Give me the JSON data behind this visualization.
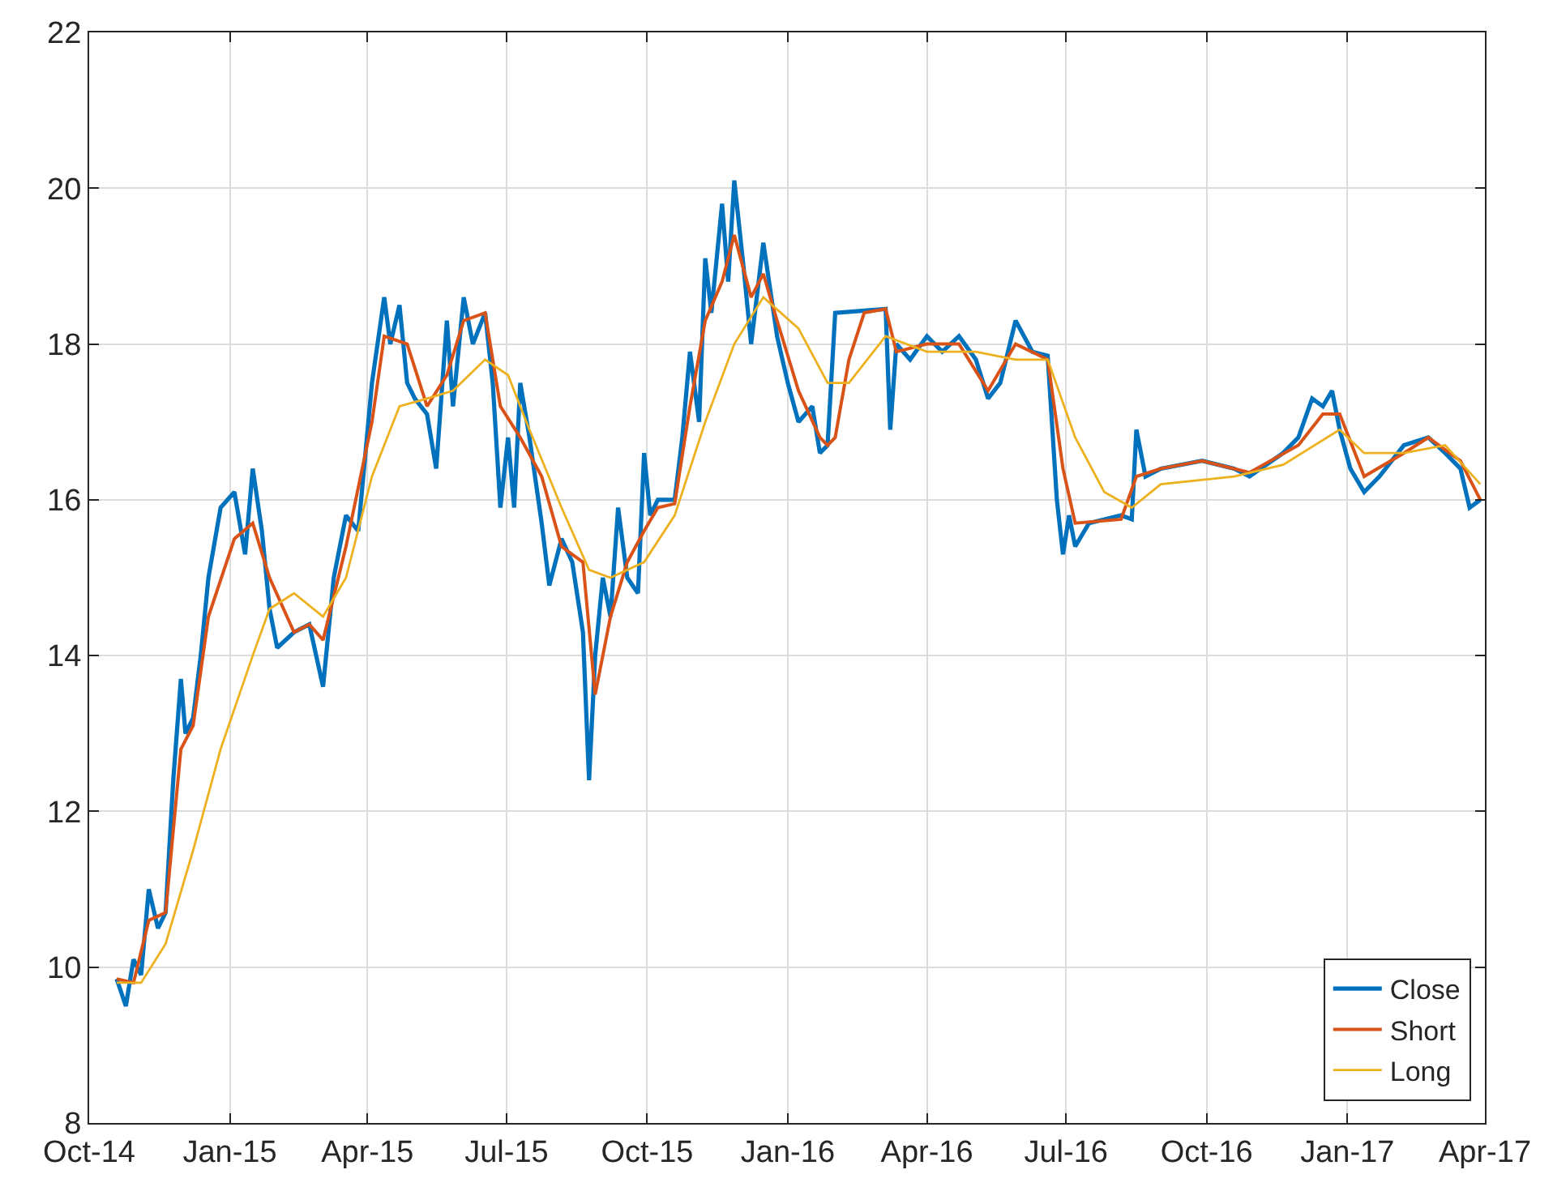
{
  "chart_data": {
    "type": "line",
    "xlim": [
      "2014-10-01",
      "2017-04-01"
    ],
    "xticks": [
      {
        "value": "2014-10-01",
        "label": "Oct-14"
      },
      {
        "value": "2015-01-01",
        "label": "Jan-15"
      },
      {
        "value": "2015-04-01",
        "label": "Apr-15"
      },
      {
        "value": "2015-07-01",
        "label": "Jul-15"
      },
      {
        "value": "2015-10-01",
        "label": "Oct-15"
      },
      {
        "value": "2016-01-01",
        "label": "Jan-16"
      },
      {
        "value": "2016-04-01",
        "label": "Apr-16"
      },
      {
        "value": "2016-07-01",
        "label": "Jul-16"
      },
      {
        "value": "2016-10-01",
        "label": "Oct-16"
      },
      {
        "value": "2017-01-01",
        "label": "Jan-17"
      },
      {
        "value": "2017-04-01",
        "label": "Apr-17"
      }
    ],
    "ylim": [
      8,
      22
    ],
    "yticks": [
      8,
      10,
      12,
      14,
      16,
      18,
      20,
      22
    ],
    "grid": true,
    "legend": "bottom right",
    "line_style": "solid",
    "series": [
      {
        "name": "Close",
        "color": "#0072bd",
        "x": [
          "2014-10-19",
          "2014-10-25",
          "2014-10-30",
          "2014-11-04",
          "2014-11-09",
          "2014-11-15",
          "2014-11-20",
          "2014-11-25",
          "2014-11-30",
          "2014-12-03",
          "2014-12-08",
          "2014-12-13",
          "2014-12-18",
          "2014-12-26",
          "2015-01-04",
          "2015-01-11",
          "2015-01-16",
          "2015-01-22",
          "2015-01-27",
          "2015-02-01",
          "2015-02-12",
          "2015-02-22",
          "2015-03-03",
          "2015-03-10",
          "2015-03-18",
          "2015-03-26",
          "2015-04-04",
          "2015-04-12",
          "2015-04-16",
          "2015-04-22",
          "2015-04-27",
          "2015-05-02",
          "2015-05-10",
          "2015-05-16",
          "2015-05-23",
          "2015-05-27",
          "2015-06-03",
          "2015-06-09",
          "2015-06-17",
          "2015-06-22",
          "2015-06-27",
          "2015-07-02",
          "2015-07-06",
          "2015-07-10",
          "2015-07-16",
          "2015-07-24",
          "2015-07-29",
          "2015-08-06",
          "2015-08-13",
          "2015-08-20",
          "2015-08-24",
          "2015-08-28",
          "2015-09-02",
          "2015-09-07",
          "2015-09-12",
          "2015-09-18",
          "2015-09-25",
          "2015-09-29",
          "2015-10-03",
          "2015-10-08",
          "2015-10-19",
          "2015-10-24",
          "2015-10-29",
          "2015-11-04",
          "2015-11-08",
          "2015-11-12",
          "2015-11-19",
          "2015-11-23",
          "2015-11-27",
          "2015-12-03",
          "2015-12-08",
          "2015-12-16",
          "2015-12-25",
          "2016-01-01",
          "2016-01-08",
          "2016-01-17",
          "2016-01-22",
          "2016-01-27",
          "2016-02-01",
          "2016-03-05",
          "2016-03-08",
          "2016-03-12",
          "2016-03-21",
          "2016-04-01",
          "2016-04-11",
          "2016-04-22",
          "2016-05-03",
          "2016-05-11",
          "2016-05-19",
          "2016-05-29",
          "2016-06-09",
          "2016-06-19",
          "2016-06-25",
          "2016-06-29",
          "2016-07-03",
          "2016-07-07",
          "2016-07-16",
          "2016-08-06",
          "2016-08-13",
          "2016-08-16",
          "2016-08-22",
          "2016-09-01",
          "2016-09-28",
          "2016-10-19",
          "2016-10-29",
          "2016-11-20",
          "2016-11-30",
          "2016-12-09",
          "2016-12-16",
          "2016-12-22",
          "2016-12-27",
          "2017-01-03",
          "2017-01-12",
          "2017-01-22",
          "2017-02-07",
          "2017-02-23",
          "2017-03-06",
          "2017-03-16",
          "2017-03-22",
          "2017-03-29"
        ],
        "values": [
          9.85,
          9.5,
          10.1,
          9.9,
          11.0,
          10.5,
          10.7,
          12.4,
          13.7,
          13.0,
          13.2,
          14.0,
          15.0,
          15.9,
          16.1,
          15.3,
          16.4,
          15.6,
          14.6,
          14.1,
          14.3,
          14.4,
          13.6,
          15.0,
          15.8,
          15.6,
          17.5,
          18.6,
          18.0,
          18.5,
          17.5,
          17.3,
          17.1,
          16.4,
          18.3,
          17.2,
          18.6,
          18.0,
          18.4,
          17.5,
          15.9,
          16.8,
          15.9,
          17.5,
          16.8,
          15.7,
          14.9,
          15.5,
          15.2,
          14.3,
          12.4,
          14.0,
          15.0,
          14.5,
          15.9,
          15.0,
          14.8,
          16.6,
          15.8,
          16.0,
          16.0,
          16.8,
          17.9,
          17.0,
          19.1,
          18.4,
          19.8,
          18.8,
          20.1,
          19.0,
          18.0,
          19.3,
          18.1,
          17.5,
          17.0,
          17.2,
          16.6,
          16.7,
          18.4,
          18.45,
          16.9,
          18.0,
          17.8,
          18.1,
          17.9,
          18.1,
          17.8,
          17.3,
          17.5,
          18.3,
          17.9,
          17.85,
          16.0,
          15.3,
          15.8,
          15.4,
          15.7,
          15.8,
          15.75,
          16.9,
          16.3,
          16.4,
          16.5,
          16.4,
          16.3,
          16.6,
          16.8,
          17.3,
          17.2,
          17.4,
          16.9,
          16.4,
          16.1,
          16.3,
          16.7,
          16.8,
          16.6,
          16.4,
          15.9,
          16.0
        ]
      },
      {
        "name": "Short",
        "color": "#d95319",
        "x": [
          "2014-10-19",
          "2014-10-30",
          "2014-11-09",
          "2014-11-20",
          "2014-11-30",
          "2014-12-08",
          "2014-12-18",
          "2015-01-04",
          "2015-01-16",
          "2015-01-27",
          "2015-02-12",
          "2015-02-22",
          "2015-03-03",
          "2015-03-18",
          "2015-04-04",
          "2015-04-12",
          "2015-04-27",
          "2015-05-10",
          "2015-05-23",
          "2015-06-03",
          "2015-06-17",
          "2015-06-27",
          "2015-07-10",
          "2015-07-24",
          "2015-08-06",
          "2015-08-20",
          "2015-08-28",
          "2015-09-07",
          "2015-09-18",
          "2015-09-29",
          "2015-10-08",
          "2015-10-19",
          "2015-10-29",
          "2015-11-08",
          "2015-11-19",
          "2015-11-27",
          "2015-12-08",
          "2015-12-16",
          "2015-12-25",
          "2016-01-08",
          "2016-01-22",
          "2016-01-27",
          "2016-02-01",
          "2016-02-10",
          "2016-02-20",
          "2016-03-05",
          "2016-03-12",
          "2016-04-01",
          "2016-04-22",
          "2016-05-11",
          "2016-05-29",
          "2016-06-19",
          "2016-06-29",
          "2016-07-07",
          "2016-08-06",
          "2016-08-16",
          "2016-09-01",
          "2016-09-28",
          "2016-10-29",
          "2016-11-30",
          "2016-12-16",
          "2016-12-27",
          "2017-01-12",
          "2017-02-07",
          "2017-02-23",
          "2017-03-16",
          "2017-03-29"
        ],
        "values": [
          9.85,
          9.8,
          10.6,
          10.7,
          12.8,
          13.1,
          14.5,
          15.5,
          15.7,
          15.0,
          14.3,
          14.4,
          14.2,
          15.4,
          17.0,
          18.1,
          18.0,
          17.2,
          17.6,
          18.3,
          18.4,
          17.2,
          16.8,
          16.3,
          15.4,
          15.2,
          13.5,
          14.5,
          15.2,
          15.6,
          15.9,
          15.95,
          17.2,
          18.3,
          18.8,
          19.4,
          18.6,
          18.9,
          18.3,
          17.4,
          16.8,
          16.7,
          16.8,
          17.8,
          18.4,
          18.45,
          17.9,
          18.0,
          18.0,
          17.4,
          18.0,
          17.8,
          16.4,
          15.7,
          15.75,
          16.3,
          16.4,
          16.5,
          16.35,
          16.7,
          17.1,
          17.1,
          16.3,
          16.6,
          16.8,
          16.5,
          16.0
        ]
      },
      {
        "name": "Long",
        "color": "#edb120",
        "x": [
          "2014-10-19",
          "2014-11-04",
          "2014-11-20",
          "2014-12-08",
          "2014-12-26",
          "2015-01-16",
          "2015-01-27",
          "2015-02-12",
          "2015-03-03",
          "2015-03-18",
          "2015-04-04",
          "2015-04-22",
          "2015-05-10",
          "2015-05-27",
          "2015-06-17",
          "2015-07-02",
          "2015-07-16",
          "2015-08-06",
          "2015-08-24",
          "2015-09-07",
          "2015-09-29",
          "2015-10-19",
          "2015-11-08",
          "2015-11-27",
          "2015-12-16",
          "2016-01-08",
          "2016-01-27",
          "2016-02-10",
          "2016-03-05",
          "2016-04-01",
          "2016-05-03",
          "2016-05-29",
          "2016-06-19",
          "2016-07-07",
          "2016-07-26",
          "2016-08-13",
          "2016-09-01",
          "2016-10-19",
          "2016-11-20",
          "2016-12-27",
          "2017-01-12",
          "2017-02-07",
          "2017-03-06",
          "2017-03-29"
        ],
        "values": [
          9.8,
          9.8,
          10.3,
          11.5,
          12.8,
          14.0,
          14.6,
          14.8,
          14.5,
          15.0,
          16.3,
          17.2,
          17.3,
          17.4,
          17.8,
          17.6,
          16.9,
          15.9,
          15.1,
          15.0,
          15.2,
          15.8,
          17.0,
          18.0,
          18.6,
          18.2,
          17.5,
          17.5,
          18.1,
          17.9,
          17.9,
          17.8,
          17.8,
          16.8,
          16.1,
          15.9,
          16.2,
          16.3,
          16.45,
          16.9,
          16.6,
          16.6,
          16.7,
          16.2
        ]
      }
    ]
  }
}
